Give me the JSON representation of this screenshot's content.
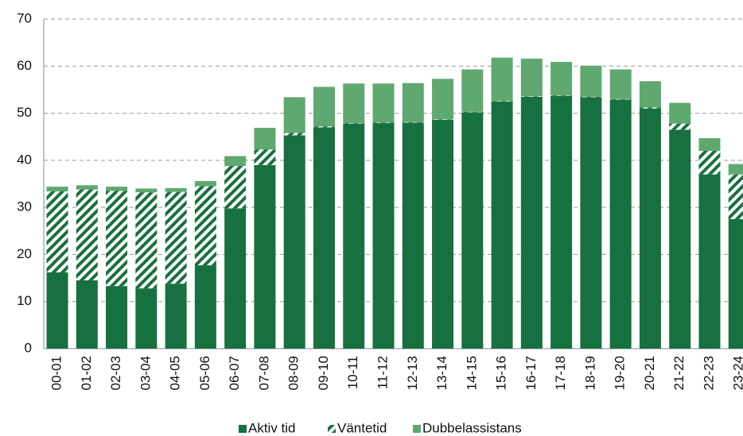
{
  "chart_data": {
    "type": "stacked_bar",
    "categories": [
      "00-01",
      "01-02",
      "02-03",
      "03-04",
      "04-05",
      "05-06",
      "06-07",
      "07-08",
      "08-09",
      "09-10",
      "10-11",
      "11-12",
      "12-13",
      "13-14",
      "14-15",
      "15-16",
      "16-17",
      "17-18",
      "18-19",
      "19-20",
      "20-21",
      "21-22",
      "22-23",
      "23-24"
    ],
    "series": [
      {
        "name": "Aktiv tid",
        "color": "#17703f",
        "pattern": "solid",
        "values": [
          16.2,
          14.5,
          13.3,
          12.8,
          13.8,
          17.7,
          29.8,
          39.0,
          45.3,
          47.0,
          47.8,
          47.9,
          48.0,
          48.6,
          50.2,
          52.5,
          53.5,
          53.7,
          53.4,
          52.9,
          51.0,
          46.5,
          37.0,
          27.5
        ]
      },
      {
        "name": "Väntetid",
        "color": "#17703f",
        "pattern": "hatch",
        "values": [
          17.2,
          19.3,
          20.2,
          20.4,
          19.5,
          16.8,
          9.0,
          3.3,
          0.5,
          0.2,
          0.1,
          0.1,
          0.1,
          0.1,
          0.1,
          0.1,
          0.1,
          0.1,
          0.1,
          0.1,
          0.2,
          1.3,
          5.0,
          9.5
        ]
      },
      {
        "name": "Dubbelassistans",
        "color": "#5fa86f",
        "pattern": "solid",
        "values": [
          1.0,
          0.9,
          0.9,
          0.8,
          0.8,
          1.1,
          2.1,
          4.6,
          7.6,
          8.4,
          8.4,
          8.3,
          8.3,
          8.6,
          9.0,
          9.2,
          8.0,
          7.1,
          6.6,
          6.3,
          5.6,
          4.4,
          2.7,
          2.2
        ]
      }
    ],
    "ylim": [
      0,
      70
    ],
    "yticks": [
      0,
      10,
      20,
      30,
      40,
      50,
      60,
      70
    ],
    "grid": true,
    "legend": "bottom"
  }
}
